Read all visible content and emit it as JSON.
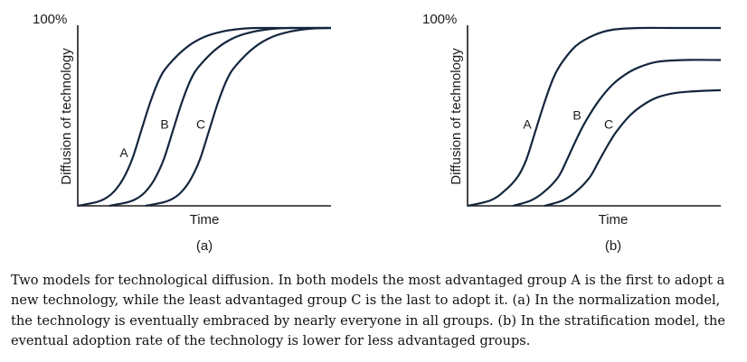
{
  "chart_data": [
    {
      "type": "line",
      "panel_label": "(a)",
      "top_label": "100%",
      "xlabel": "Time",
      "ylabel": "Diffusion of technology",
      "ylim": [
        0,
        100
      ],
      "series": [
        {
          "name": "A",
          "x": [
            0,
            20,
            30,
            40,
            50,
            60,
            70,
            80,
            90,
            100,
            120,
            140,
            160,
            180,
            200,
            230,
            280
          ],
          "y": [
            0,
            2,
            4,
            8,
            15,
            26,
            42,
            58,
            71,
            79,
            89,
            95,
            98,
            99.5,
            100,
            100,
            100
          ]
        },
        {
          "name": "B",
          "x": [
            35,
            55,
            65,
            75,
            85,
            95,
            105,
            115,
            125,
            135,
            155,
            175,
            195,
            215,
            235,
            280
          ],
          "y": [
            0,
            2,
            4,
            8,
            15,
            26,
            42,
            58,
            71,
            79,
            89,
            95,
            98,
            99.5,
            100,
            100
          ]
        },
        {
          "name": "C",
          "x": [
            75,
            95,
            105,
            115,
            125,
            135,
            145,
            155,
            165,
            175,
            195,
            215,
            235,
            255,
            275,
            280
          ],
          "y": [
            0,
            2,
            4,
            8,
            15,
            26,
            42,
            58,
            71,
            79,
            89,
            95,
            98,
            99.5,
            100,
            100
          ]
        }
      ]
    },
    {
      "type": "line",
      "panel_label": "(b)",
      "top_label": "100%",
      "xlabel": "Time",
      "ylabel": "Diffusion of technology",
      "ylim": [
        0,
        100
      ],
      "series": [
        {
          "name": "A",
          "x": [
            0,
            25,
            40,
            55,
            65,
            75,
            85,
            95,
            105,
            120,
            140,
            160,
            190,
            230,
            280
          ],
          "y": [
            0,
            3,
            8,
            16,
            26,
            42,
            58,
            72,
            81,
            90,
            96,
            99,
            100,
            100,
            100
          ]
        },
        {
          "name": "B",
          "x": [
            50,
            70,
            85,
            100,
            110,
            120,
            130,
            145,
            160,
            175,
            190,
            210,
            240,
            280
          ],
          "y": [
            0,
            3,
            8,
            16,
            26,
            37,
            47,
            59,
            68,
            74,
            78,
            81,
            82,
            82
          ]
        },
        {
          "name": "C",
          "x": [
            85,
            105,
            120,
            135,
            145,
            155,
            165,
            180,
            195,
            210,
            230,
            255,
            280
          ],
          "y": [
            0,
            3,
            8,
            16,
            25,
            34,
            42,
            51,
            57,
            61,
            63.5,
            64.5,
            65
          ]
        }
      ]
    }
  ],
  "caption": "Two models for technological diffusion. In both models the most advantaged group A is the first to adopt a new technology, while the least advantaged group C is the last to adopt it. (a) In the normalization model, the technology is eventually embraced by nearly everyone in all groups. (b) In the stratification model, the eventual adoption rate of the technology is lower for less advantaged groups."
}
